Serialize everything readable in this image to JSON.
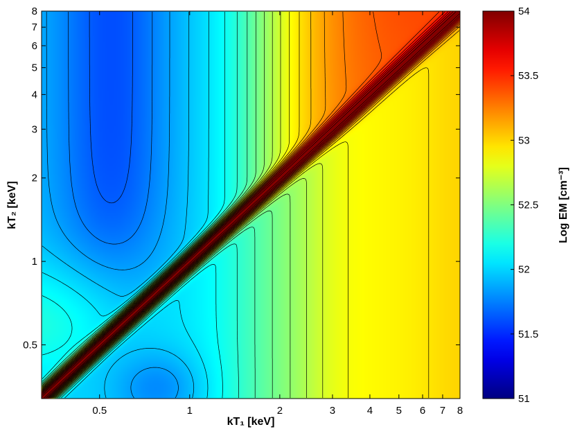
{
  "chart_data": {
    "type": "heatmap",
    "xlabel": "kT₁ [keV]",
    "ylabel": "kT₂ [keV]",
    "x_scale": "log",
    "y_scale": "log",
    "xlim": [
      0.32,
      8
    ],
    "ylim": [
      0.32,
      8
    ],
    "x_ticks": [
      0.5,
      1,
      2,
      3,
      4,
      5,
      6,
      7,
      8
    ],
    "x_tick_labels": [
      "0.5",
      "1",
      "2",
      "3",
      "4",
      "5",
      "6",
      "7",
      "8"
    ],
    "y_ticks": [
      0.5,
      1,
      2,
      3,
      4,
      5,
      6,
      7,
      8
    ],
    "y_tick_labels": [
      "0.5",
      "1",
      "2",
      "3",
      "4",
      "5",
      "6",
      "7",
      "8"
    ],
    "colorbar": {
      "label": "Log EM [cm⁻³]",
      "range": [
        51,
        54
      ],
      "ticks": [
        51,
        51.5,
        52,
        52.5,
        53,
        53.5,
        54
      ],
      "tick_labels": [
        "51",
        "51.5",
        "52",
        "52.5",
        "53",
        "53.5",
        "54"
      ],
      "colormap": "jet",
      "colors": [
        "#00008f",
        "#0000ff",
        "#00ffff",
        "#ffff00",
        "#ff0000",
        "#800000"
      ]
    },
    "grid": false,
    "description_values": {
      "diagonal_max": 54,
      "upper_left_min": 51.9,
      "lower_left_basin": 52.0,
      "right_plateau": 53.0
    }
  }
}
